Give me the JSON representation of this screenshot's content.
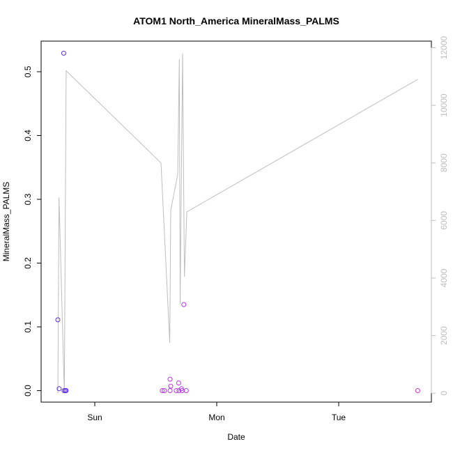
{
  "chart_data": {
    "type": "scatter",
    "title": "ATOM1 North_America MineralMass_PALMS",
    "xlabel": "Date",
    "ylabel": "MineralMass_PALMS",
    "x_ticks": [
      "Sun",
      "Mon",
      "Tue"
    ],
    "x_tick_values": [
      1,
      2,
      3
    ],
    "xlim": [
      0.56,
      3.76
    ],
    "ylim": [
      -0.018,
      0.548
    ],
    "y_ticks": [
      0.0,
      0.1,
      0.2,
      0.3,
      0.4,
      0.5
    ],
    "y_tick_labels": [
      "0.0",
      "0.1",
      "0.2",
      "0.3",
      "0.4",
      "0.5"
    ],
    "y2lim": [
      -310,
      12230
    ],
    "y2_ticks": [
      0,
      2000,
      4000,
      6000,
      8000,
      10000,
      12000
    ],
    "y2_tick_labels": [
      "0",
      "2000",
      "4000",
      "6000",
      "8000",
      "10000",
      "12000"
    ],
    "grid": false,
    "points": [
      {
        "x": 0.697,
        "y": 0.111,
        "color": "#5a2ee6"
      },
      {
        "x": 0.708,
        "y": 0.003,
        "color": "#5a2ee6"
      },
      {
        "x": 0.745,
        "y": 0.529,
        "color": "#5a2ee6"
      },
      {
        "x": 0.748,
        "y": 0.0,
        "color": "#5a2ee6"
      },
      {
        "x": 0.758,
        "y": 0.0,
        "color": "#5a2ee6"
      },
      {
        "x": 0.765,
        "y": 0.0,
        "color": "#5a2ee6"
      },
      {
        "x": 1.553,
        "y": 0.0,
        "color": "#bb33ee"
      },
      {
        "x": 1.57,
        "y": 0.0,
        "color": "#bb33ee"
      },
      {
        "x": 1.617,
        "y": 0.0,
        "color": "#bb33ee"
      },
      {
        "x": 1.617,
        "y": 0.018,
        "color": "#bb33ee"
      },
      {
        "x": 1.623,
        "y": 0.007,
        "color": "#bb33ee"
      },
      {
        "x": 1.668,
        "y": 0.0,
        "color": "#bb33ee"
      },
      {
        "x": 1.688,
        "y": 0.012,
        "color": "#bb33ee"
      },
      {
        "x": 1.69,
        "y": 0.0,
        "color": "#bb33ee"
      },
      {
        "x": 1.71,
        "y": 0.003,
        "color": "#bb33ee"
      },
      {
        "x": 1.715,
        "y": 0.0,
        "color": "#bb33ee"
      },
      {
        "x": 1.73,
        "y": 0.135,
        "color": "#bb33ee"
      },
      {
        "x": 1.75,
        "y": 0.0,
        "color": "#bb33ee"
      },
      {
        "x": 3.648,
        "y": 0.0,
        "color": "#dd33dd"
      }
    ],
    "line_series": {
      "axis": "right",
      "color": "#bdbdbd",
      "x": [
        0.697,
        0.707,
        0.75,
        0.765,
        1.543,
        1.615,
        1.623,
        1.68,
        1.693,
        1.7,
        1.72,
        1.735,
        1.755,
        3.648
      ],
      "y": [
        0,
        6800,
        0,
        11200,
        8000,
        1750,
        6350,
        7600,
        11600,
        3100,
        11800,
        4050,
        6300,
        10900
      ]
    }
  }
}
